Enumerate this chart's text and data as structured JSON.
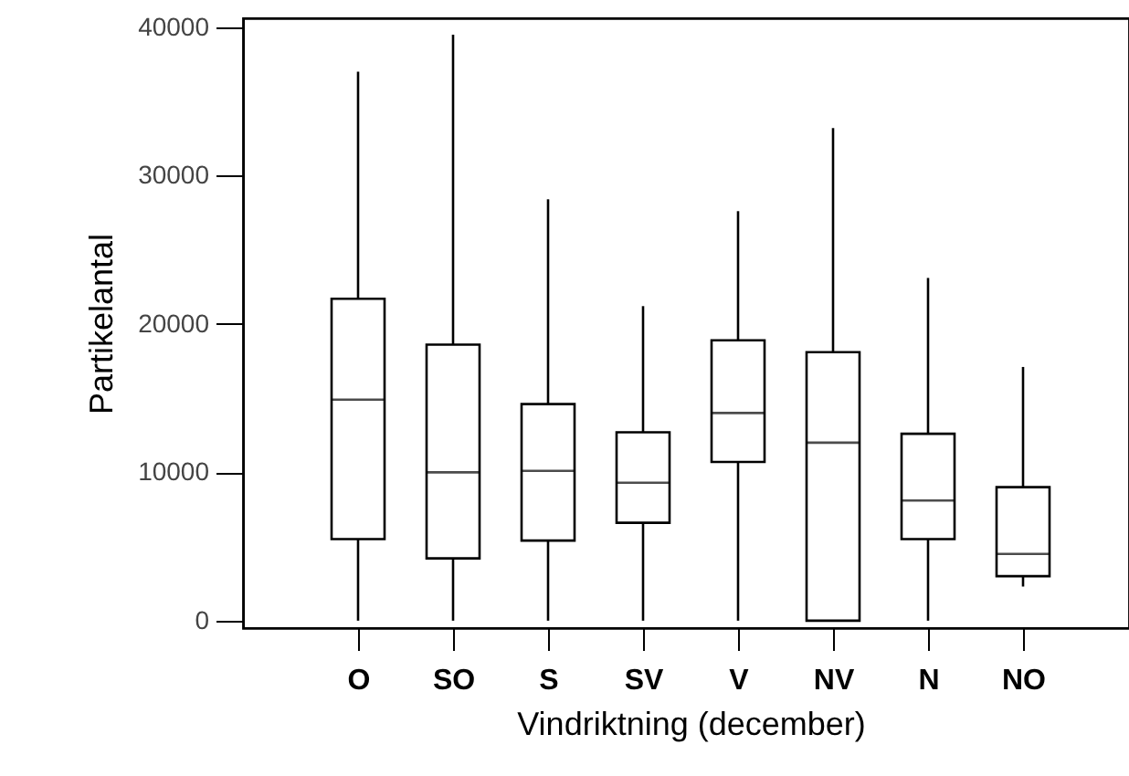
{
  "chart_data": {
    "type": "box",
    "xlabel": "Vindriktning (december)",
    "ylabel": "Partikelantal",
    "categories": [
      "O",
      "SO",
      "S",
      "SV",
      "V",
      "NV",
      "N",
      "NO"
    ],
    "boxes": [
      {
        "low": 0,
        "q1": 5500,
        "median": 14900,
        "q3": 21700,
        "high": 37000
      },
      {
        "low": 0,
        "q1": 4200,
        "median": 10000,
        "q3": 18600,
        "high": 39500
      },
      {
        "low": 0,
        "q1": 5400,
        "median": 10100,
        "q3": 14600,
        "high": 28400
      },
      {
        "low": 0,
        "q1": 6600,
        "median": 9300,
        "q3": 12700,
        "high": 21200
      },
      {
        "low": 0,
        "q1": 10700,
        "median": 14000,
        "q3": 18900,
        "high": 27600
      },
      {
        "low": 0,
        "q1": 0,
        "median": 12000,
        "q3": 18100,
        "high": 33200
      },
      {
        "low": 0,
        "q1": 5500,
        "median": 8100,
        "q3": 12600,
        "high": 23100
      },
      {
        "low": 2300,
        "q1": 3000,
        "median": 4500,
        "q3": 9000,
        "high": 17100
      }
    ],
    "ylim": [
      -500,
      40600
    ],
    "yticks": [
      0,
      10000,
      20000,
      30000,
      40000
    ],
    "grid": false
  }
}
